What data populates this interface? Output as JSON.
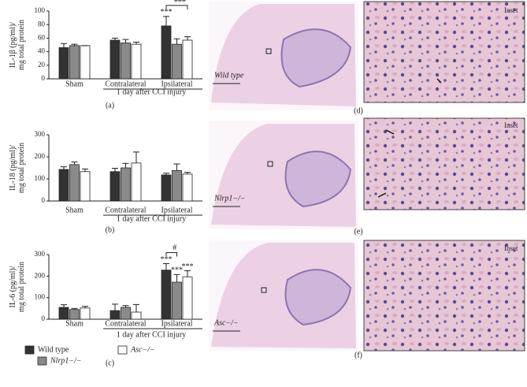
{
  "chart_data": [
    {
      "type": "bar",
      "panel": "(a)",
      "ylabel": [
        "IL-1β (pg/ml)/",
        "mg total protein"
      ],
      "categories": [
        "Sham",
        "Contralateral",
        "Ipsilateral"
      ],
      "xlabel": "1 day after CCI injury",
      "ylim": [
        0,
        100
      ],
      "yticks": [
        0,
        20,
        40,
        60,
        80,
        100
      ],
      "series": [
        {
          "name": "Wild type",
          "color": "#333333",
          "values": [
            46,
            57,
            78
          ],
          "errors": [
            6,
            3,
            14
          ]
        },
        {
          "name": "Nlrp1−/−",
          "color": "#8a8a8a",
          "values": [
            49,
            53,
            51
          ],
          "errors": [
            2,
            5,
            8
          ]
        },
        {
          "name": "Asc−/−",
          "color": "#ffffff",
          "values": [
            49,
            51,
            57
          ],
          "errors": [
            0,
            3,
            5
          ]
        }
      ],
      "annotations": [
        {
          "text": "***",
          "category": "Ipsilateral",
          "series": [
            "Wild type"
          ]
        },
        {
          "text": "###",
          "category": "Ipsilateral",
          "series": [
            "Wild type",
            "Asc−/−"
          ]
        }
      ]
    },
    {
      "type": "bar",
      "panel": "(b)",
      "ylabel": [
        "IL-18 (pg/ml)/",
        "mg total protein"
      ],
      "categories": [
        "Sham",
        "Contralateral",
        "Ipsilateral"
      ],
      "xlabel": "1 day after CCI injury",
      "ylim": [
        0,
        300
      ],
      "yticks": [
        0,
        100,
        200,
        300
      ],
      "series": [
        {
          "name": "Wild type",
          "color": "#333333",
          "values": [
            143,
            133,
            118
          ],
          "errors": [
            12,
            15,
            8
          ]
        },
        {
          "name": "Nlrp1−/−",
          "color": "#8a8a8a",
          "values": [
            165,
            150,
            138
          ],
          "errors": [
            12,
            20,
            30
          ]
        },
        {
          "name": "Asc−/−",
          "color": "#ffffff",
          "values": [
            133,
            172,
            122
          ],
          "errors": [
            12,
            50,
            8
          ]
        }
      ],
      "annotations": []
    },
    {
      "type": "bar",
      "panel": "(c)",
      "ylabel": [
        "IL-6 (pg/ml)/",
        "mg total protein"
      ],
      "categories": [
        "Sham",
        "Contralateral",
        "Ipsilateral"
      ],
      "xlabel": "1 day after CCI injury",
      "ylim": [
        0,
        300
      ],
      "yticks": [
        0,
        100,
        200,
        300
      ],
      "series": [
        {
          "name": "Wild type",
          "color": "#333333",
          "values": [
            55,
            40,
            228
          ],
          "errors": [
            12,
            30,
            30
          ]
        },
        {
          "name": "Nlrp1−/−",
          "color": "#8a8a8a",
          "values": [
            45,
            55,
            172
          ],
          "errors": [
            5,
            8,
            35
          ]
        },
        {
          "name": "Asc−/−",
          "color": "#ffffff",
          "values": [
            52,
            33,
            197
          ],
          "errors": [
            8,
            35,
            28
          ]
        }
      ],
      "annotations": [
        {
          "text": "***",
          "category": "Ipsilateral",
          "series": [
            "Wild type"
          ]
        },
        {
          "text": "***",
          "category": "Ipsilateral",
          "series": [
            "Nlrp1−/−"
          ]
        },
        {
          "text": "***",
          "category": "Ipsilateral",
          "series": [
            "Asc−/−"
          ]
        },
        {
          "text": "#",
          "category": "Ipsilateral",
          "series": [
            "Wild type",
            "Nlrp1−/−"
          ]
        }
      ]
    }
  ],
  "images": [
    {
      "label": "Wild type",
      "inset": "Inset",
      "panel": "(d)"
    },
    {
      "label": "Nlrp1−/−",
      "inset": "Inset",
      "panel": "(e)"
    },
    {
      "label": "Asc−/−",
      "inset": "Inset",
      "panel": "(f)"
    }
  ]
}
